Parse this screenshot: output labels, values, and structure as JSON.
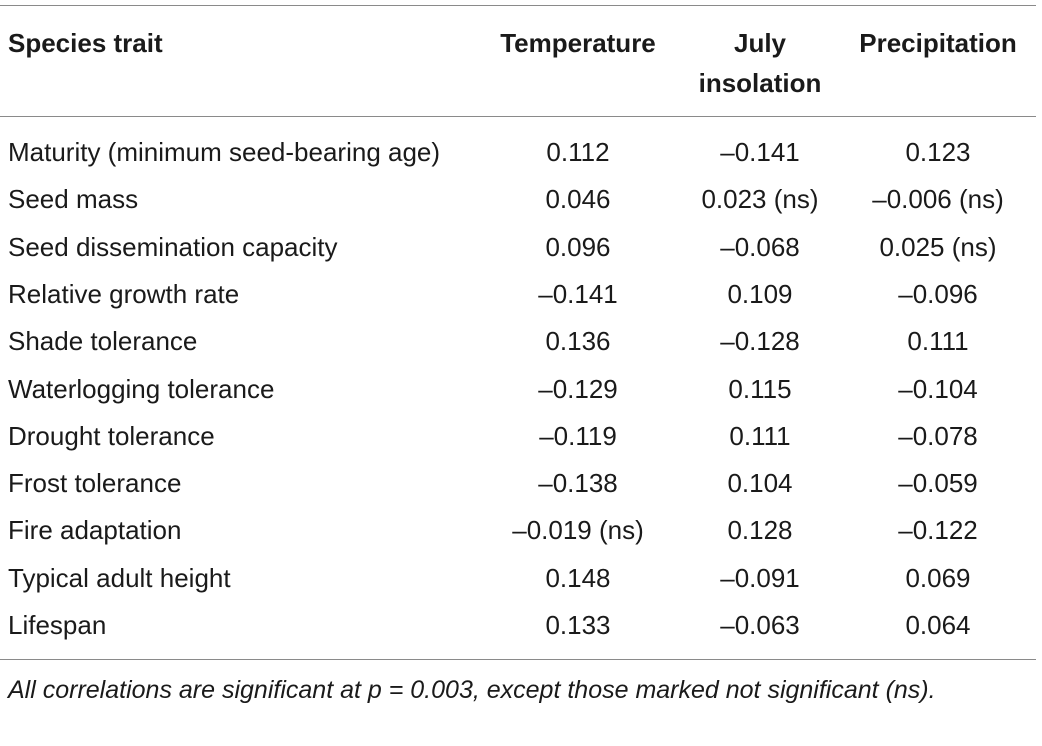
{
  "table": {
    "headers": {
      "trait": "Species trait",
      "temperature": "Temperature",
      "july_insolation_line1": "July",
      "july_insolation_line2": "insolation",
      "precipitation": "Precipitation"
    },
    "rows": [
      {
        "trait": "Maturity (minimum seed-bearing age)",
        "temperature": "0.112",
        "july_insolation": "–0.141",
        "precipitation": "0.123"
      },
      {
        "trait": "Seed mass",
        "temperature": "0.046",
        "july_insolation": "0.023 (ns)",
        "precipitation": "–0.006 (ns)"
      },
      {
        "trait": "Seed dissemination capacity",
        "temperature": "0.096",
        "july_insolation": "–0.068",
        "precipitation": "0.025 (ns)"
      },
      {
        "trait": "Relative growth rate",
        "temperature": "–0.141",
        "july_insolation": "0.109",
        "precipitation": "–0.096"
      },
      {
        "trait": "Shade tolerance",
        "temperature": "0.136",
        "july_insolation": "–0.128",
        "precipitation": "0.111"
      },
      {
        "trait": "Waterlogging tolerance",
        "temperature": "–0.129",
        "july_insolation": "0.115",
        "precipitation": "–0.104"
      },
      {
        "trait": "Drought tolerance",
        "temperature": "–0.119",
        "july_insolation": "0.111",
        "precipitation": "–0.078"
      },
      {
        "trait": "Frost tolerance",
        "temperature": "–0.138",
        "july_insolation": "0.104",
        "precipitation": "–0.059"
      },
      {
        "trait": "Fire adaptation",
        "temperature": "–0.019 (ns)",
        "july_insolation": "0.128",
        "precipitation": "–0.122"
      },
      {
        "trait": "Typical adult height",
        "temperature": "0.148",
        "july_insolation": "–0.091",
        "precipitation": "0.069"
      },
      {
        "trait": "Lifespan",
        "temperature": "0.133",
        "july_insolation": "–0.063",
        "precipitation": "0.064"
      }
    ],
    "footnote": "All correlations are significant at p = 0.003, except those marked not significant (ns)."
  }
}
